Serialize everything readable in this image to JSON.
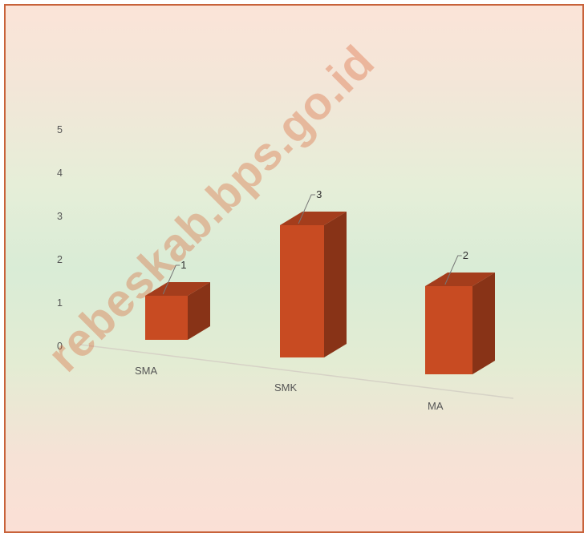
{
  "chart_data": {
    "type": "bar",
    "title": "",
    "xlabel": "",
    "ylabel": "",
    "categories": [
      "SMA",
      "SMK",
      "MA"
    ],
    "values": [
      1,
      3,
      2
    ],
    "ylim": [
      0,
      5
    ],
    "yticks": [
      "0",
      "1",
      "2",
      "3",
      "4",
      "5"
    ],
    "data_labels": [
      "1",
      "3",
      "2"
    ],
    "grid": false,
    "legend": "none",
    "style": "3d",
    "bar_color": "#c84b22"
  },
  "watermark": "rebeskab.bps.go.id"
}
